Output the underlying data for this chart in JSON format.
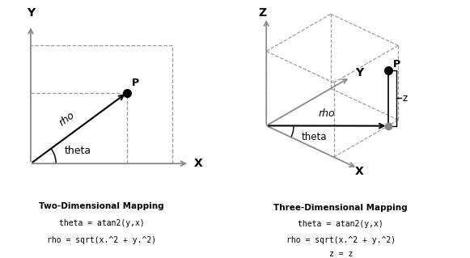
{
  "bg_color": "#ffffff",
  "gray": "#888888",
  "dark": "#000000",
  "dash_c": "#999999",
  "title_2d": "Two-Dimensional Mapping",
  "eq1_2d": "theta = atan2(y,x)",
  "eq2_2d": "rho = sqrt(x.^2 + y.^2)",
  "title_3d": "Three-Dimensional Mapping",
  "eq1_3d": "theta = atan2(y,x)",
  "eq2_3d": "rho = sqrt(x.^2 + y.^2)",
  "eq3_3d": "z = z"
}
